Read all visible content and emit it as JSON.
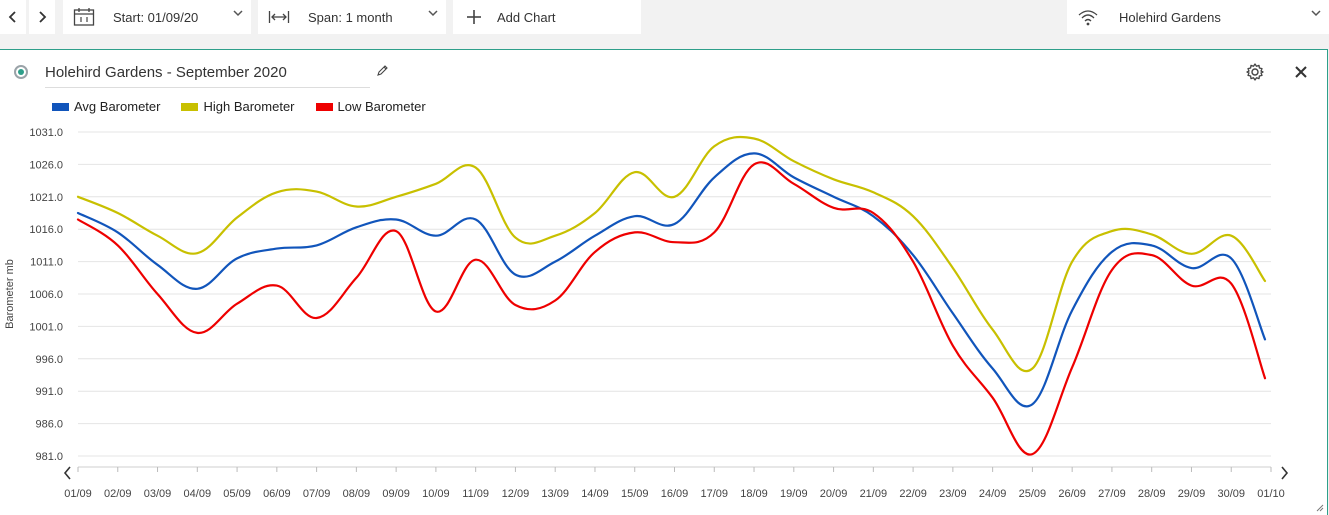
{
  "toolbar": {
    "start_label": "Start: 01/09/20",
    "span_label": "Span: 1 month",
    "add_chart_label": "Add Chart",
    "location_label": "Holehird Gardens"
  },
  "panel": {
    "title": "Holehird Gardens - September 2020"
  },
  "colors": {
    "accent": "#2e9f8a",
    "avg": "#1155bb",
    "high": "#c8c000",
    "low": "#ee0000"
  },
  "chart_data": {
    "type": "line",
    "ylabel": "Barometer mb",
    "ylim": [
      981,
      1031
    ],
    "yticks": [
      "1031.0",
      "1026.0",
      "1021.0",
      "1016.0",
      "1011.0",
      "1006.0",
      "1001.0",
      "996.0",
      "991.0",
      "986.0",
      "981.0"
    ],
    "categories": [
      "01/09",
      "02/09",
      "03/09",
      "04/09",
      "05/09",
      "06/09",
      "07/09",
      "08/09",
      "09/09",
      "10/09",
      "11/09",
      "12/09",
      "13/09",
      "14/09",
      "15/09",
      "16/09",
      "17/09",
      "18/09",
      "19/09",
      "20/09",
      "21/09",
      "22/09",
      "23/09",
      "24/09",
      "25/09",
      "26/09",
      "27/09",
      "28/09",
      "29/09",
      "30/09",
      "01/10"
    ],
    "legend_position": "top-left",
    "grid": true,
    "series": [
      {
        "name": "Avg Barometer",
        "color": "#1155bb",
        "x": [
          0,
          1,
          2,
          3,
          4,
          5,
          6,
          7,
          8,
          9,
          10,
          11,
          12,
          13,
          14,
          15,
          16,
          17,
          18,
          19,
          20,
          21,
          22,
          23,
          24,
          25,
          26,
          27,
          28,
          29,
          29.85
        ],
        "values": [
          1018.5,
          1015.5,
          1010.5,
          1006.8,
          1011.5,
          1013,
          1013.5,
          1016.3,
          1017.5,
          1015,
          1017.5,
          1009,
          1011,
          1015,
          1018,
          1016.8,
          1024,
          1027.7,
          1024,
          1021,
          1018,
          1012,
          1003,
          994.5,
          989,
          1003.5,
          1012.5,
          1013.5,
          1010,
          1011.5,
          999
        ]
      },
      {
        "name": "High Barometer",
        "color": "#c8c000",
        "x": [
          0,
          1,
          2,
          3,
          4,
          5,
          6,
          7,
          8,
          9,
          10,
          11,
          12,
          13,
          14,
          15,
          16,
          17,
          18,
          19,
          20,
          21,
          22,
          23,
          24,
          25,
          26,
          27,
          28,
          29,
          29.85
        ],
        "values": [
          1021,
          1018.5,
          1015,
          1012.3,
          1017.8,
          1021.7,
          1021.8,
          1019.5,
          1021,
          1023,
          1025.5,
          1014.7,
          1015,
          1018.5,
          1024.8,
          1021,
          1028.8,
          1030,
          1026.5,
          1023.7,
          1021.7,
          1018,
          1010,
          1000.5,
          994.5,
          1011,
          1015.7,
          1015.2,
          1012.2,
          1015,
          1008
        ]
      },
      {
        "name": "Low Barometer",
        "color": "#ee0000",
        "x": [
          0,
          1,
          2,
          3,
          4,
          5,
          6,
          7,
          8,
          9,
          10,
          11,
          12,
          13,
          14,
          15,
          16,
          17,
          18,
          19,
          20,
          21,
          22,
          23,
          24,
          25,
          26,
          27,
          28,
          29,
          29.85
        ],
        "values": [
          1017.5,
          1013.5,
          1006,
          1000,
          1004.5,
          1007.3,
          1002.3,
          1008.5,
          1015.7,
          1003.3,
          1011.3,
          1004.3,
          1005,
          1012.5,
          1015.5,
          1014,
          1015.5,
          1026,
          1023,
          1019.3,
          1018.5,
          1011,
          998,
          990,
          981.3,
          994.7,
          1009.7,
          1012,
          1007.3,
          1007.6,
          993
        ]
      }
    ]
  }
}
